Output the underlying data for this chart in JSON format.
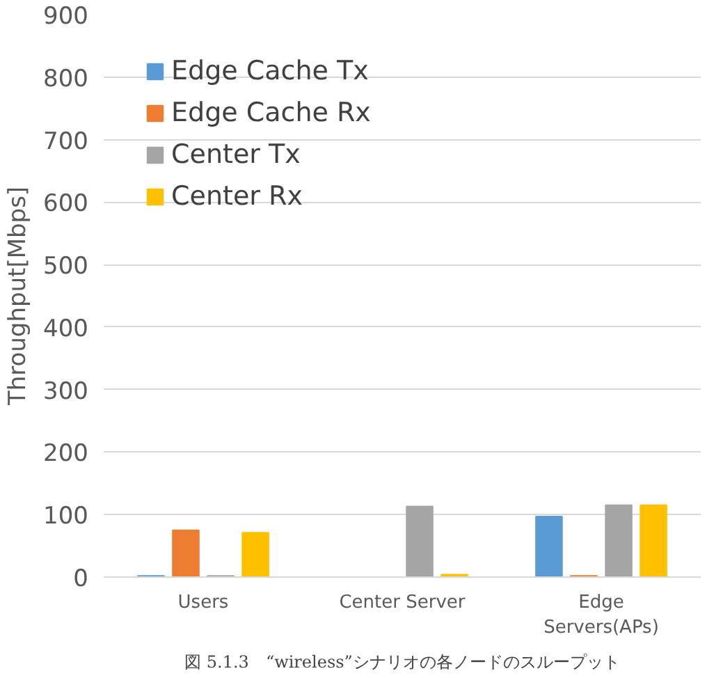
{
  "chart_data": {
    "type": "bar",
    "ylabel": "Throughput[Mbps]",
    "categories": [
      "Users",
      "Center Server",
      "Edge\nServers(APs)"
    ],
    "series": [
      {
        "name": "Edge Cache Tx",
        "color": "#5b9bd5",
        "values": [
          2,
          0,
          97
        ]
      },
      {
        "name": "Edge Cache Rx",
        "color": "#ed7d31",
        "values": [
          75,
          0,
          2
        ]
      },
      {
        "name": "Center Tx",
        "color": "#a5a5a5",
        "values": [
          2,
          113,
          115
        ]
      },
      {
        "name": "Center Rx",
        "color": "#ffc000",
        "values": [
          71,
          4,
          115
        ]
      }
    ],
    "ylim": [
      0,
      900
    ],
    "yticks": [
      0,
      100,
      200,
      300,
      400,
      500,
      600,
      700,
      800,
      900
    ],
    "grid": "y",
    "legend": "top left",
    "annotations": [
      "図 5.1.3　“wireless”シナリオの各ノードのスループット"
    ]
  }
}
